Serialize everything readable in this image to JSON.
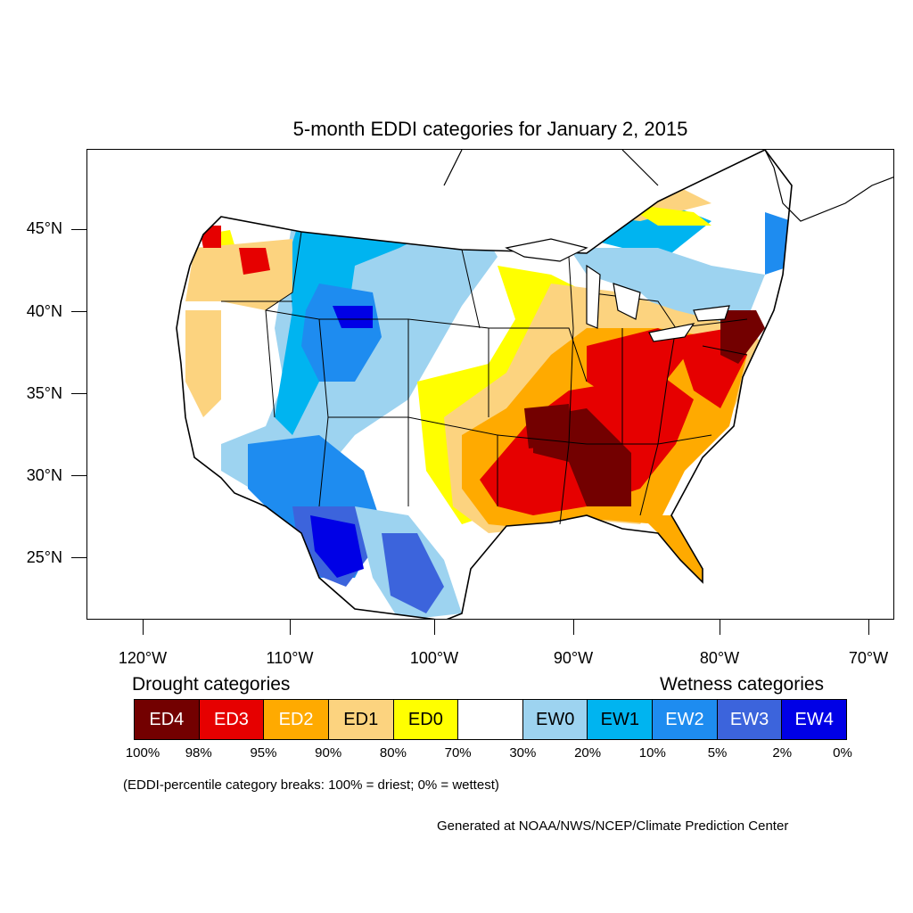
{
  "title": "5-month EDDI categories for January 2, 2015",
  "lat_labels": [
    "45°N",
    "40°N",
    "35°N",
    "30°N",
    "25°N"
  ],
  "lon_labels": [
    "120°W",
    "110°W",
    "100°W",
    "90°W",
    "80°W",
    "70°W"
  ],
  "legend": {
    "drought_heading": "Drought categories",
    "wetness_heading": "Wetness categories",
    "categories": [
      {
        "label": "ED4",
        "color": "#730000",
        "text_color": "#ffffff"
      },
      {
        "label": "ED3",
        "color": "#e60000",
        "text_color": "#ffffff"
      },
      {
        "label": "ED2",
        "color": "#ffaa00",
        "text_color": "#ffffff"
      },
      {
        "label": "ED1",
        "color": "#fcd37f",
        "text_color": "#000000"
      },
      {
        "label": "ED0",
        "color": "#ffff00",
        "text_color": "#000000"
      },
      {
        "label": "",
        "color": "#ffffff",
        "text_color": "#000000"
      },
      {
        "label": "EW0",
        "color": "#9dd3f0",
        "text_color": "#000000"
      },
      {
        "label": "EW1",
        "color": "#00b4f0",
        "text_color": "#000000"
      },
      {
        "label": "EW2",
        "color": "#1e8cf0",
        "text_color": "#ffffff"
      },
      {
        "label": "EW3",
        "color": "#3c64dc",
        "text_color": "#ffffff"
      },
      {
        "label": "EW4",
        "color": "#0000e6",
        "text_color": "#ffffff"
      }
    ],
    "breaks": [
      "100%",
      "98%",
      "95%",
      "90%",
      "80%",
      "70%",
      "30%",
      "20%",
      "10%",
      "5%",
      "2%",
      "0%"
    ]
  },
  "note": "(EDDI-percentile category breaks: 100% = driest; 0% = wettest)",
  "credit": "Generated at NOAA/NWS/NCEP/Climate Prediction Center"
}
